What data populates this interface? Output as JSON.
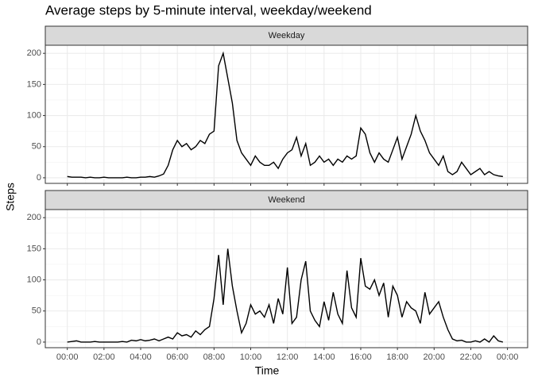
{
  "chart_data": {
    "type": "line",
    "title": "Average steps by 5-minute interval, weekday/weekend",
    "x_label": "Time",
    "y_label": "Steps",
    "x": [
      0,
      0.25,
      0.5,
      0.75,
      1,
      1.25,
      1.5,
      1.75,
      2,
      2.25,
      2.5,
      2.75,
      3,
      3.25,
      3.5,
      3.75,
      4,
      4.25,
      4.5,
      4.75,
      5,
      5.25,
      5.5,
      5.75,
      6,
      6.25,
      6.5,
      6.75,
      7,
      7.25,
      7.5,
      7.75,
      8,
      8.25,
      8.5,
      8.75,
      9,
      9.25,
      9.5,
      9.75,
      10,
      10.25,
      10.5,
      10.75,
      11,
      11.25,
      11.5,
      11.75,
      12,
      12.25,
      12.5,
      12.75,
      13,
      13.25,
      13.5,
      13.75,
      14,
      14.25,
      14.5,
      14.75,
      15,
      15.25,
      15.5,
      15.75,
      16,
      16.25,
      16.5,
      16.75,
      17,
      17.25,
      17.5,
      17.75,
      18,
      18.25,
      18.5,
      18.75,
      19,
      19.25,
      19.5,
      19.75,
      20,
      20.25,
      20.5,
      20.75,
      21,
      21.25,
      21.5,
      21.75,
      22,
      22.25,
      22.5,
      22.75,
      23,
      23.25,
      23.5,
      23.75
    ],
    "xlim": [
      -1.2,
      25.1
    ],
    "xticks": [
      {
        "value": 0,
        "label": "00:00"
      },
      {
        "value": 2,
        "label": "02:00"
      },
      {
        "value": 4,
        "label": "04:00"
      },
      {
        "value": 6,
        "label": "06:00"
      },
      {
        "value": 8,
        "label": "08:00"
      },
      {
        "value": 10,
        "label": "10:00"
      },
      {
        "value": 12,
        "label": "12:00"
      },
      {
        "value": 14,
        "label": "14:00"
      },
      {
        "value": 16,
        "label": "16:00"
      },
      {
        "value": 18,
        "label": "18:00"
      },
      {
        "value": 20,
        "label": "20:00"
      },
      {
        "value": 22,
        "label": "22:00"
      },
      {
        "value": 24,
        "label": "00:00"
      }
    ],
    "ylim": [
      -9,
      213
    ],
    "yticks": [
      0,
      50,
      100,
      150,
      200
    ],
    "grid": true,
    "series": [
      {
        "name": "Weekday",
        "color": "#000000",
        "values": [
          2,
          1,
          1,
          1,
          0,
          1,
          0,
          0,
          1,
          0,
          0,
          0,
          0,
          1,
          0,
          0,
          1,
          1,
          2,
          1,
          3,
          6,
          20,
          45,
          60,
          50,
          55,
          45,
          50,
          60,
          55,
          70,
          75,
          180,
          200,
          160,
          120,
          60,
          40,
          30,
          20,
          35,
          25,
          20,
          20,
          25,
          15,
          30,
          40,
          45,
          65,
          35,
          55,
          20,
          25,
          35,
          25,
          30,
          20,
          30,
          25,
          35,
          30,
          35,
          80,
          70,
          40,
          25,
          40,
          30,
          25,
          45,
          65,
          30,
          50,
          70,
          100,
          75,
          60,
          40,
          30,
          20,
          35,
          10,
          5,
          10,
          25,
          15,
          5,
          10,
          15,
          5,
          10,
          5,
          3,
          2
        ]
      },
      {
        "name": "Weekend",
        "color": "#000000",
        "values": [
          0,
          1,
          2,
          0,
          0,
          0,
          1,
          0,
          0,
          0,
          0,
          0,
          1,
          0,
          3,
          2,
          4,
          2,
          3,
          5,
          2,
          5,
          8,
          5,
          15,
          10,
          12,
          8,
          18,
          12,
          20,
          25,
          70,
          140,
          60,
          150,
          90,
          50,
          15,
          30,
          60,
          45,
          50,
          40,
          60,
          30,
          70,
          45,
          120,
          30,
          40,
          100,
          130,
          50,
          35,
          25,
          65,
          35,
          80,
          45,
          30,
          115,
          55,
          40,
          135,
          90,
          85,
          100,
          75,
          95,
          40,
          90,
          75,
          40,
          65,
          55,
          50,
          30,
          80,
          45,
          55,
          65,
          40,
          20,
          5,
          2,
          3,
          0,
          0,
          2,
          0,
          5,
          0,
          10,
          2,
          0
        ]
      }
    ]
  }
}
